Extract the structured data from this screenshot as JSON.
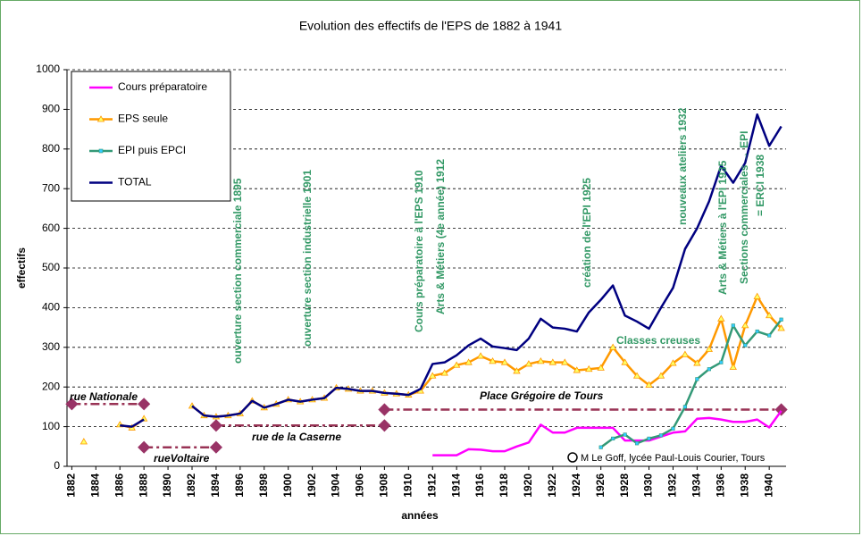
{
  "chart_data": {
    "type": "line",
    "title": "Evolution des effectifs de l'EPS de 1882 à 1941",
    "xlabel": "années",
    "ylabel": "effectifs",
    "xlim": [
      1881.6,
      1941.4
    ],
    "xticks": [
      1882,
      1884,
      1886,
      1888,
      1890,
      1892,
      1894,
      1896,
      1898,
      1900,
      1902,
      1904,
      1906,
      1908,
      1910,
      1912,
      1914,
      1916,
      1918,
      1920,
      1922,
      1924,
      1926,
      1928,
      1930,
      1932,
      1934,
      1936,
      1938,
      1940
    ],
    "ylim": [
      0,
      1000
    ],
    "yticks": [
      0,
      100,
      200,
      300,
      400,
      500,
      600,
      700,
      800,
      900,
      1000
    ],
    "grid": true,
    "legend": "upper left",
    "series": [
      {
        "name": "Cours préparatoire",
        "color": "#ff00ff",
        "marker": "none",
        "x": [
          1912,
          1913,
          1914,
          1915,
          1916,
          1917,
          1918,
          1919,
          1920,
          1921,
          1922,
          1923,
          1924,
          1925,
          1926,
          1927,
          1928,
          1929,
          1930,
          1931,
          1932,
          1933,
          1934,
          1935,
          1936,
          1937,
          1938,
          1939,
          1940,
          1941
        ],
        "values": [
          28,
          28,
          28,
          43,
          42,
          38,
          38,
          50,
          60,
          105,
          85,
          85,
          97,
          97,
          97,
          97,
          65,
          65,
          65,
          75,
          85,
          88,
          120,
          122,
          118,
          112,
          112,
          118,
          98,
          140
        ]
      },
      {
        "name": "EPS seule",
        "color": "#ff9900",
        "marker": "triangle",
        "x": [
          1883,
          1884,
          1885,
          1886,
          1887,
          1888,
          1889,
          1890,
          1891,
          1892,
          1893,
          1894,
          1895,
          1896,
          1897,
          1898,
          1899,
          1900,
          1901,
          1902,
          1903,
          1904,
          1905,
          1906,
          1907,
          1908,
          1909,
          1910,
          1911,
          1912,
          1913,
          1914,
          1915,
          1916,
          1917,
          1918,
          1919,
          1920,
          1921,
          1922,
          1923,
          1924,
          1925,
          1926,
          1927,
          1928,
          1929,
          1930,
          1931,
          1932,
          1933,
          1934,
          1935,
          1936,
          1937,
          1938,
          1939,
          1940,
          1941
        ],
        "values": [
          62,
          null,
          null,
          105,
          97,
          120,
          null,
          null,
          null,
          152,
          128,
          125,
          128,
          133,
          165,
          148,
          157,
          168,
          163,
          168,
          172,
          198,
          195,
          190,
          190,
          185,
          183,
          180,
          190,
          228,
          235,
          255,
          262,
          278,
          265,
          262,
          240,
          258,
          265,
          262,
          262,
          242,
          245,
          248,
          300,
          262,
          228,
          205,
          228,
          260,
          282,
          260,
          295,
          372,
          250,
          355,
          428,
          380,
          348
        ]
      },
      {
        "name": "EPI puis EPCI",
        "color": "#339977",
        "marker": "square",
        "x": [
          1926,
          1927,
          1928,
          1929,
          1930,
          1931,
          1932,
          1933,
          1934,
          1935,
          1936,
          1937,
          1938,
          1939,
          1940,
          1941
        ],
        "values": [
          48,
          70,
          80,
          58,
          70,
          78,
          95,
          150,
          220,
          245,
          262,
          355,
          305,
          340,
          330,
          370
        ]
      },
      {
        "name": "TOTAL",
        "color": "#000080",
        "marker": "none",
        "x": [
          1886,
          1887,
          1888,
          1889,
          1890,
          1891,
          1892,
          1893,
          1894,
          1895,
          1896,
          1897,
          1898,
          1899,
          1900,
          1901,
          1902,
          1903,
          1904,
          1905,
          1906,
          1907,
          1908,
          1909,
          1910,
          1911,
          1912,
          1913,
          1914,
          1915,
          1916,
          1917,
          1918,
          1919,
          1920,
          1921,
          1922,
          1923,
          1924,
          1925,
          1926,
          1927,
          1928,
          1929,
          1930,
          1931,
          1932,
          1933,
          1934,
          1935,
          1936,
          1937,
          1938,
          1939,
          1940,
          1941
        ],
        "values": [
          103,
          100,
          118,
          null,
          null,
          null,
          152,
          128,
          125,
          128,
          133,
          165,
          148,
          157,
          168,
          163,
          168,
          172,
          198,
          195,
          190,
          190,
          185,
          183,
          180,
          195,
          258,
          262,
          280,
          305,
          322,
          302,
          298,
          293,
          322,
          372,
          350,
          347,
          340,
          388,
          420,
          456,
          380,
          365,
          347,
          400,
          450,
          548,
          600,
          668,
          758,
          715,
          765,
          887,
          808,
          857
        ]
      }
    ],
    "locations": [
      {
        "label": "rue Nationale",
        "x": [
          1882,
          1888
        ],
        "y": 157
      },
      {
        "label": "rueVoltaire",
        "x": [
          1888,
          1894
        ],
        "y": 48
      },
      {
        "label": "rue de la Caserne",
        "x": [
          1894,
          1908
        ],
        "y": 103
      },
      {
        "label": "Place Grégoire de Tours",
        "x": [
          1908,
          1941
        ],
        "y": 143
      }
    ],
    "annotations": [
      "ouverture section commerciale 1895",
      "ouverture section industrielle 1901",
      "Cours préparatoire à l'EPS 1910",
      "Arts & Métiers (4e année)  1912",
      "création de l'EPI  1925",
      "nouveaux ateliers 1932",
      "Arts & Métiers  à l'EPI 1935",
      "Sections commerciales → EPI",
      "= ERCI  1938",
      "Classes creuses"
    ],
    "credit": "M Le Goff, lycée Paul-Louis Courier, Tours"
  }
}
